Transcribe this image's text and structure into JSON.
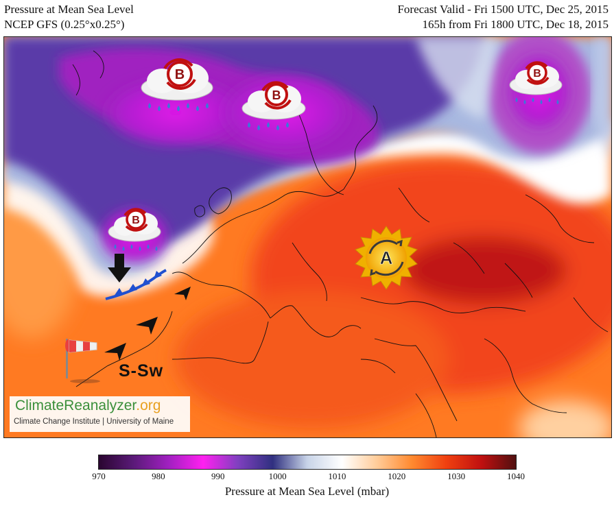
{
  "header": {
    "title": "Pressure at Mean Sea Level",
    "model": "NCEP GFS (0.25°x0.25°)",
    "valid": "Forecast Valid - Fri 1500 UTC, Dec 25, 2015",
    "lead": "165h from Fri 1800 UTC, Dec 18, 2015"
  },
  "map": {
    "pressure_centers": [
      {
        "label": "B",
        "meaning": "low pressure",
        "rain": true
      },
      {
        "label": "B",
        "meaning": "low pressure",
        "rain": true
      },
      {
        "label": "B",
        "meaning": "low pressure",
        "rain": true
      },
      {
        "label": "B",
        "meaning": "low pressure",
        "rain": true
      },
      {
        "label": "A",
        "meaning": "high pressure",
        "sun": true
      }
    ],
    "wind_label": "S-Sw",
    "icons": [
      "rain-cloud-icon",
      "sun-icon",
      "windsock-icon",
      "arrow-down-icon",
      "wind-arrow-icon",
      "cold-front-icon"
    ]
  },
  "colorbar": {
    "title": "Pressure at Mean Sea Level (mbar)",
    "min": 970,
    "max": 1040,
    "ticks": [
      "970",
      "980",
      "990",
      "1000",
      "1010",
      "1020",
      "1030",
      "1040"
    ],
    "colors": [
      "#2a0630",
      "#5a1a78",
      "#a020c0",
      "#ff20f0",
      "#8040c0",
      "#303080",
      "#c8d4e8",
      "#ffffff",
      "#ffcc99",
      "#ff8a30",
      "#f04010",
      "#c01010",
      "#501010"
    ]
  },
  "logo": {
    "brand_1": "ClimateReanalyzer",
    "brand_2": ".org",
    "subtitle": "Climate Change Institute | University of Maine"
  }
}
